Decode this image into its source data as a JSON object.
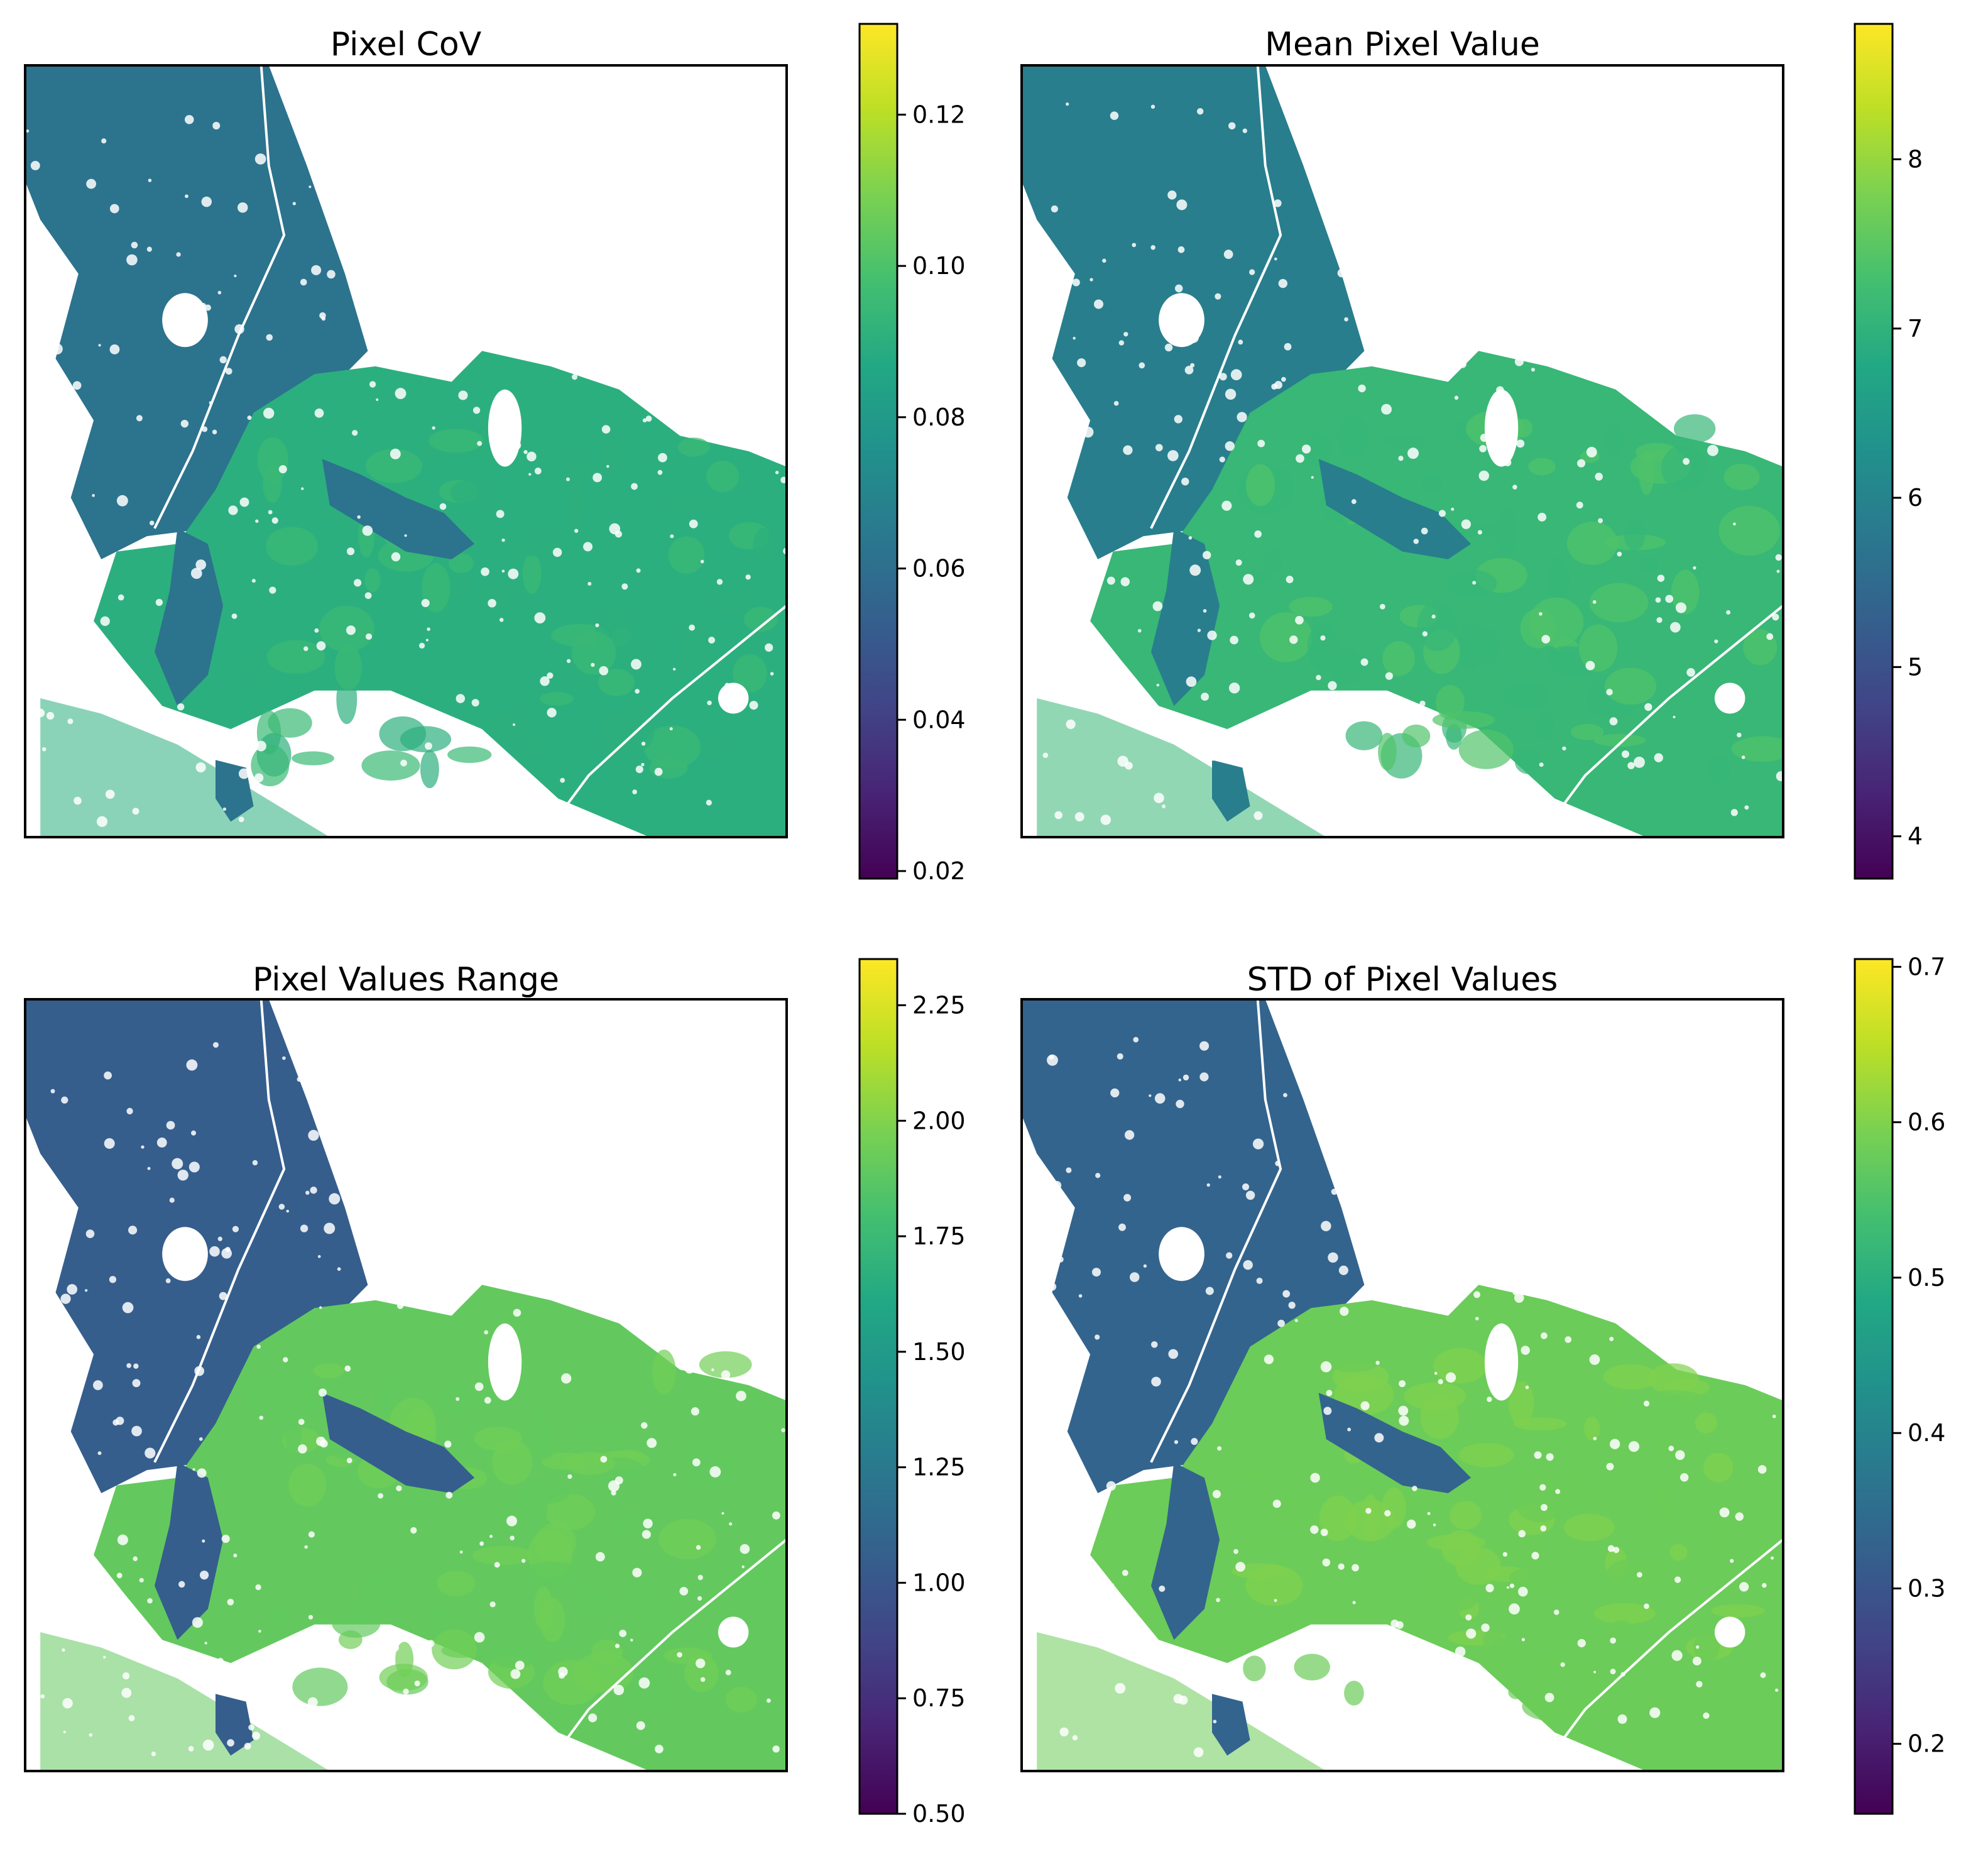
{
  "chart_data": [
    {
      "type": "heatmap",
      "title": "Pixel CoV",
      "colormap": "viridis",
      "vmin": 0.019,
      "vmax": 0.132,
      "colorbar_ticks": [
        {
          "value": 0.02,
          "label": "0.02"
        },
        {
          "value": 0.04,
          "label": "0.04"
        },
        {
          "value": 0.06,
          "label": "0.06"
        },
        {
          "value": 0.08,
          "label": "0.08"
        },
        {
          "value": 0.1,
          "label": "0.10"
        },
        {
          "value": 0.12,
          "label": "0.12"
        }
      ],
      "axes_ticks_visible": false,
      "region_values": {
        "north_west": 0.062,
        "south_east": 0.09,
        "south_east_highlight": 0.095
      }
    },
    {
      "type": "heatmap",
      "title": "Mean Pixel Value",
      "colormap": "viridis",
      "vmin": 3.75,
      "vmax": 8.8,
      "colorbar_ticks": [
        {
          "value": 4,
          "label": "4"
        },
        {
          "value": 5,
          "label": "5"
        },
        {
          "value": 6,
          "label": "6"
        },
        {
          "value": 7,
          "label": "7"
        },
        {
          "value": 8,
          "label": "8"
        }
      ],
      "axes_ticks_visible": false,
      "region_values": {
        "north_west": 5.9,
        "south_east": 7.1,
        "south_east_highlight": 7.4
      }
    },
    {
      "type": "heatmap",
      "title": "Pixel Values Range",
      "colormap": "viridis",
      "vmin": 0.5,
      "vmax": 2.35,
      "colorbar_ticks": [
        {
          "value": 0.5,
          "label": "0.50"
        },
        {
          "value": 0.75,
          "label": "0.75"
        },
        {
          "value": 1.0,
          "label": "1.00"
        },
        {
          "value": 1.25,
          "label": "1.25"
        },
        {
          "value": 1.5,
          "label": "1.50"
        },
        {
          "value": 1.75,
          "label": "1.75"
        },
        {
          "value": 2.0,
          "label": "2.00"
        },
        {
          "value": 2.25,
          "label": "2.25"
        }
      ],
      "axes_ticks_visible": false,
      "region_values": {
        "north_west": 1.05,
        "south_east": 1.9,
        "south_east_highlight": 1.95
      }
    },
    {
      "type": "heatmap",
      "title": "STD of Pixel Values",
      "colormap": "viridis",
      "vmin": 0.155,
      "vmax": 0.705,
      "colorbar_ticks": [
        {
          "value": 0.2,
          "label": "0.2"
        },
        {
          "value": 0.3,
          "label": "0.3"
        },
        {
          "value": 0.4,
          "label": "0.4"
        },
        {
          "value": 0.5,
          "label": "0.5"
        },
        {
          "value": 0.6,
          "label": "0.6"
        },
        {
          "value": 0.7,
          "label": "0.7"
        }
      ],
      "axes_ticks_visible": false,
      "region_values": {
        "north_west": 0.33,
        "south_east": 0.58,
        "south_east_highlight": 0.6
      }
    }
  ]
}
